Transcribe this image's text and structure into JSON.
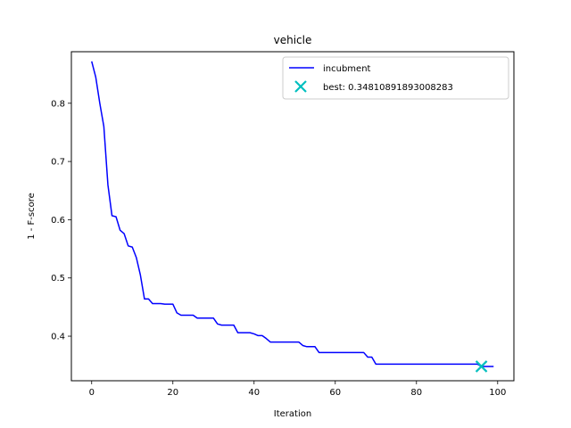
{
  "chart_data": {
    "type": "line",
    "title": "vehicle",
    "xlabel": "Iteration",
    "ylabel": "1 - F-score",
    "xlim": [
      -5,
      104
    ],
    "ylim": [
      0.3235,
      0.8885
    ],
    "xticks": [
      0,
      20,
      40,
      60,
      80,
      100
    ],
    "yticks": [
      0.4,
      0.5,
      0.6,
      0.7,
      0.8
    ],
    "grid": false,
    "legend_position": "top-right",
    "colors": {
      "incumbent": "#0000ff",
      "best": "#00bfbf"
    },
    "series": [
      {
        "name": "incubment",
        "type": "line",
        "x": [
          0,
          1,
          2,
          3,
          4,
          5,
          6,
          7,
          8,
          9,
          10,
          11,
          12,
          13,
          14,
          15,
          16,
          17,
          18,
          19,
          20,
          21,
          22,
          23,
          24,
          25,
          26,
          27,
          28,
          29,
          30,
          31,
          32,
          33,
          34,
          35,
          36,
          37,
          38,
          39,
          40,
          41,
          42,
          43,
          44,
          45,
          46,
          47,
          48,
          49,
          50,
          51,
          52,
          53,
          54,
          55,
          56,
          57,
          58,
          59,
          60,
          61,
          62,
          63,
          64,
          65,
          66,
          67,
          68,
          69,
          70,
          71,
          72,
          73,
          74,
          75,
          76,
          77,
          78,
          79,
          80,
          81,
          82,
          83,
          84,
          85,
          86,
          87,
          88,
          89,
          90,
          91,
          92,
          93,
          94,
          95,
          96,
          97,
          98,
          99
        ],
        "y": [
          0.872,
          0.845,
          0.8,
          0.76,
          0.66,
          0.607,
          0.605,
          0.582,
          0.576,
          0.555,
          0.553,
          0.535,
          0.505,
          0.464,
          0.464,
          0.456,
          0.456,
          0.456,
          0.455,
          0.455,
          0.455,
          0.44,
          0.436,
          0.436,
          0.436,
          0.436,
          0.431,
          0.431,
          0.431,
          0.431,
          0.431,
          0.421,
          0.419,
          0.419,
          0.419,
          0.419,
          0.406,
          0.406,
          0.406,
          0.406,
          0.404,
          0.401,
          0.401,
          0.396,
          0.39,
          0.39,
          0.39,
          0.39,
          0.39,
          0.39,
          0.39,
          0.39,
          0.384,
          0.382,
          0.382,
          0.382,
          0.372,
          0.372,
          0.372,
          0.372,
          0.372,
          0.372,
          0.372,
          0.372,
          0.372,
          0.372,
          0.372,
          0.372,
          0.364,
          0.364,
          0.352,
          0.352,
          0.352,
          0.352,
          0.352,
          0.352,
          0.352,
          0.352,
          0.352,
          0.352,
          0.352,
          0.352,
          0.352,
          0.352,
          0.352,
          0.352,
          0.352,
          0.352,
          0.352,
          0.352,
          0.352,
          0.352,
          0.352,
          0.352,
          0.352,
          0.352,
          0.348,
          0.348,
          0.348,
          0.348
        ]
      },
      {
        "name": "best: 0.34810891893008283",
        "type": "scatter",
        "marker": "x",
        "x": [
          96
        ],
        "y": [
          0.34810891893008283
        ]
      }
    ]
  }
}
